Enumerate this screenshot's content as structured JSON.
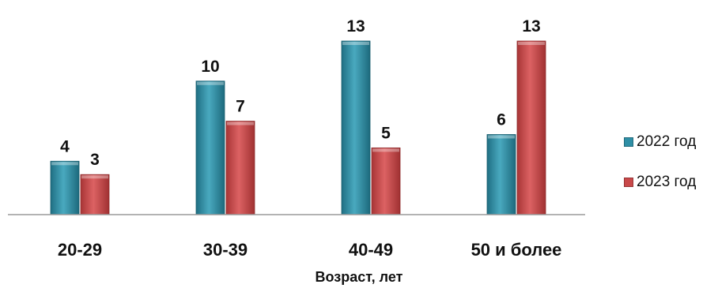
{
  "chart_data": {
    "type": "bar",
    "title": "",
    "xlabel": "Возраст, лет",
    "ylabel": "",
    "categories": [
      "20-29",
      "30-39",
      "40-49",
      "50 и более"
    ],
    "series": [
      {
        "name": "2022 год",
        "values": [
          4,
          10,
          13,
          6
        ],
        "color": "#2f8fa6"
      },
      {
        "name": "2023 год",
        "values": [
          3,
          7,
          5,
          13
        ],
        "color": "#c9494a"
      }
    ],
    "ylim": [
      0,
      13
    ],
    "grid": false,
    "legend_position": "right",
    "data_labels": true
  }
}
